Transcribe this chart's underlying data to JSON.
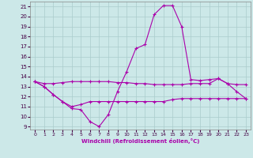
{
  "xlabel": "Windchill (Refroidissement éolien,°C)",
  "xlim": [
    -0.5,
    23.5
  ],
  "ylim": [
    8.7,
    21.5
  ],
  "yticks": [
    9,
    10,
    11,
    12,
    13,
    14,
    15,
    16,
    17,
    18,
    19,
    20,
    21
  ],
  "xticks": [
    0,
    1,
    2,
    3,
    4,
    5,
    6,
    7,
    8,
    9,
    10,
    11,
    12,
    13,
    14,
    15,
    16,
    17,
    18,
    19,
    20,
    21,
    22,
    23
  ],
  "bg_color": "#cce8e8",
  "line_color": "#aa00aa",
  "grid_color": "#aacccc",
  "line1_x": [
    0,
    1,
    2,
    3,
    4,
    5,
    6,
    7,
    8,
    9,
    10,
    11,
    12,
    13,
    14,
    15,
    16,
    17,
    18,
    19,
    20,
    21,
    22,
    23
  ],
  "line1_y": [
    13.5,
    13.0,
    12.2,
    11.5,
    10.8,
    10.7,
    9.5,
    9.0,
    10.2,
    12.5,
    14.5,
    16.8,
    17.2,
    20.2,
    21.1,
    21.1,
    19.0,
    13.7,
    13.6,
    13.7,
    13.8,
    13.3,
    12.5,
    11.8
  ],
  "line2_x": [
    0,
    1,
    2,
    3,
    4,
    5,
    6,
    7,
    8,
    9,
    10,
    11,
    12,
    13,
    14,
    15,
    16,
    17,
    18,
    19,
    20,
    21,
    22,
    23
  ],
  "line2_y": [
    13.5,
    13.3,
    13.3,
    13.4,
    13.5,
    13.5,
    13.5,
    13.5,
    13.5,
    13.4,
    13.4,
    13.3,
    13.3,
    13.2,
    13.2,
    13.2,
    13.2,
    13.3,
    13.3,
    13.3,
    13.8,
    13.3,
    13.2,
    13.2
  ],
  "line3_x": [
    0,
    1,
    2,
    3,
    4,
    5,
    6,
    7,
    8,
    9,
    10,
    11,
    12,
    13,
    14,
    15,
    16,
    17,
    18,
    19,
    20,
    21,
    22,
    23
  ],
  "line3_y": [
    13.5,
    13.0,
    12.2,
    11.5,
    11.0,
    11.2,
    11.5,
    11.5,
    11.5,
    11.5,
    11.5,
    11.5,
    11.5,
    11.5,
    11.5,
    11.7,
    11.8,
    11.8,
    11.8,
    11.8,
    11.8,
    11.8,
    11.8,
    11.8
  ]
}
